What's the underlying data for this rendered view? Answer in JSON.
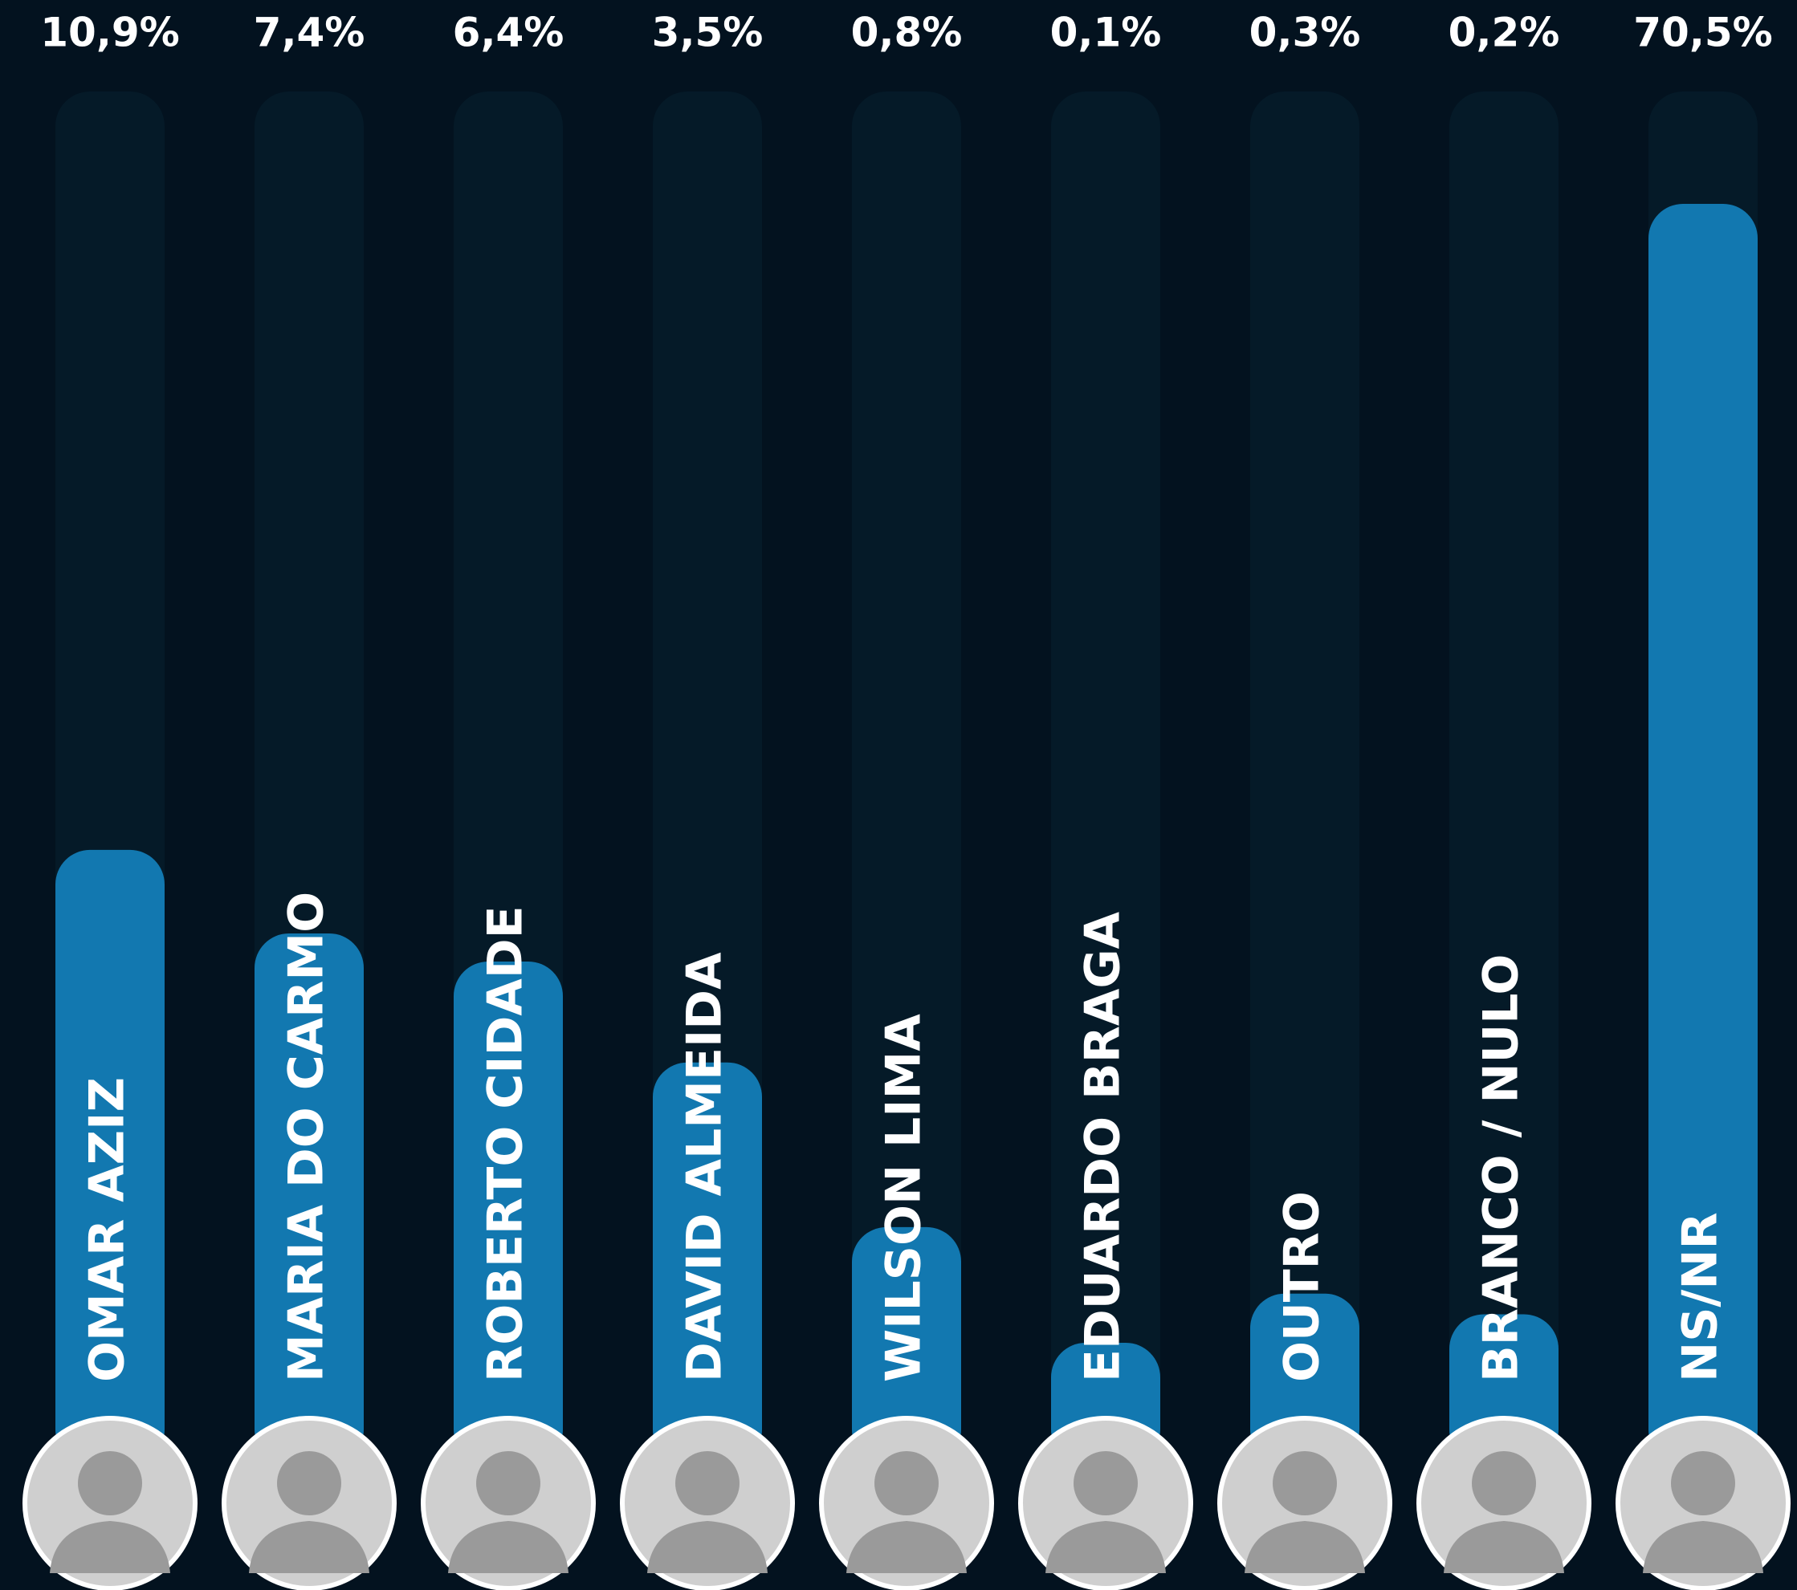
{
  "chart_data": {
    "type": "bar",
    "categories": [
      "OMAR AZIZ",
      "MARIA DO CARMO",
      "ROBERTO CIDADE",
      "DAVID ALMEIDA",
      "WILSON LIMA",
      "EDUARDO BRAGA",
      "OUTRO",
      "BRANCO / NULO",
      "NS/NR"
    ],
    "values": [
      10.9,
      7.4,
      6.4,
      3.5,
      0.8,
      0.1,
      0.3,
      0.2,
      70.5
    ],
    "value_labels": [
      "10,9%",
      "7,4%",
      "6,4%",
      "3,5%",
      "0,8%",
      "0,1%",
      "0,3%",
      "0,2%",
      "70,5%"
    ],
    "color": "#1278b0"
  }
}
